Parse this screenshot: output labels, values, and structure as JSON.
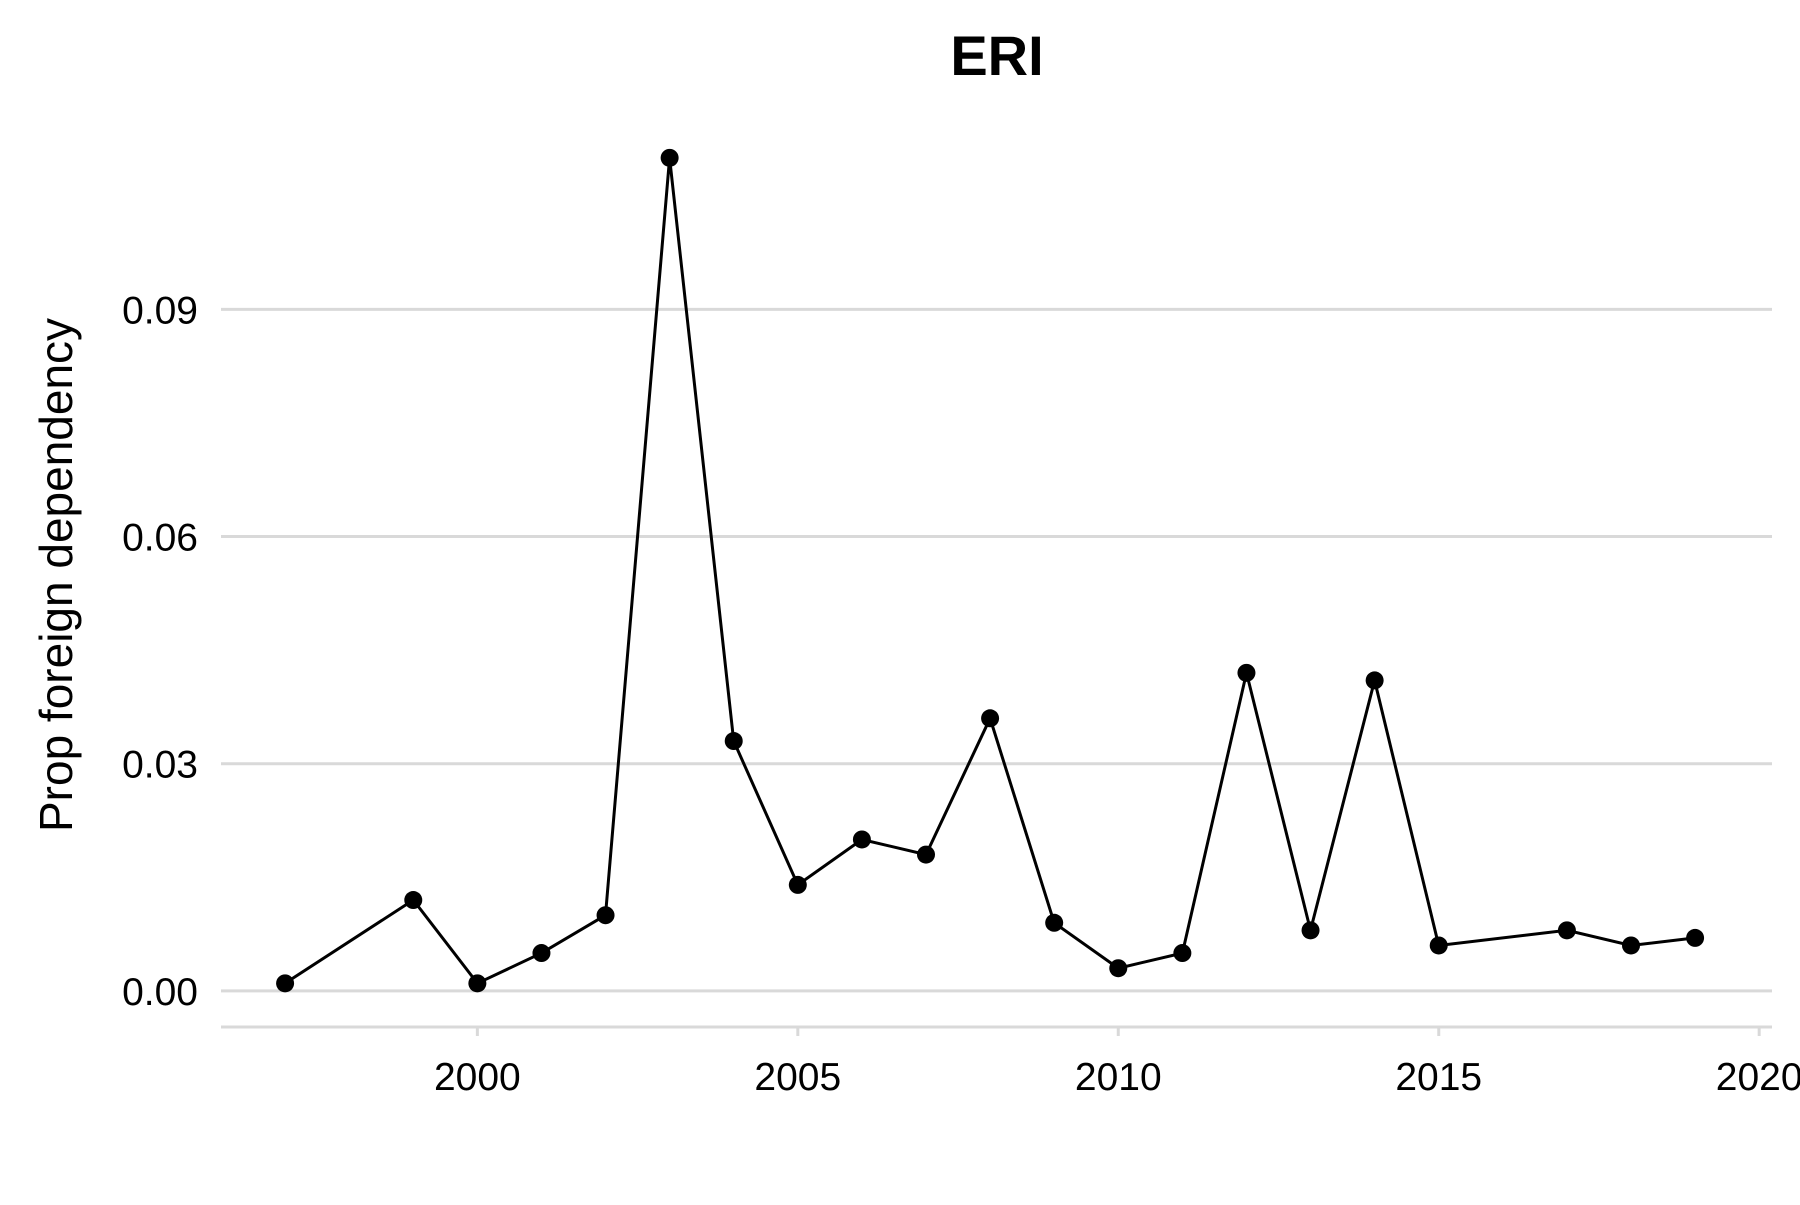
{
  "chart_data": {
    "type": "line",
    "title": "ERI",
    "xlabel": "",
    "ylabel": "Prop foreign dependency",
    "xlim": [
      1996.0,
      2020.2
    ],
    "ylim": [
      -0.0045,
      0.115
    ],
    "x_ticks": [
      2000,
      2005,
      2010,
      2015,
      2020
    ],
    "x_tick_labels": [
      "2000",
      "2005",
      "2010",
      "2015",
      "2020"
    ],
    "y_ticks": [
      0.0,
      0.03,
      0.06,
      0.09
    ],
    "y_tick_labels": [
      "0.00",
      "0.03",
      "0.06",
      "0.09"
    ],
    "grid": "horizontal",
    "legend": "none",
    "series": [
      {
        "x": [
          1997,
          1999,
          2000,
          2001,
          2002,
          2003,
          2004,
          2005,
          2006,
          2007,
          2008,
          2009,
          2010,
          2011,
          2012,
          2013,
          2014,
          2015,
          2017,
          2018,
          2019
        ],
        "y": [
          0.001,
          0.012,
          0.001,
          0.005,
          0.01,
          0.11,
          0.033,
          0.014,
          0.02,
          0.018,
          0.036,
          0.009,
          0.003,
          0.005,
          0.042,
          0.008,
          0.041,
          0.006,
          0.008,
          0.006,
          0.007
        ],
        "color": "#000000"
      }
    ]
  }
}
